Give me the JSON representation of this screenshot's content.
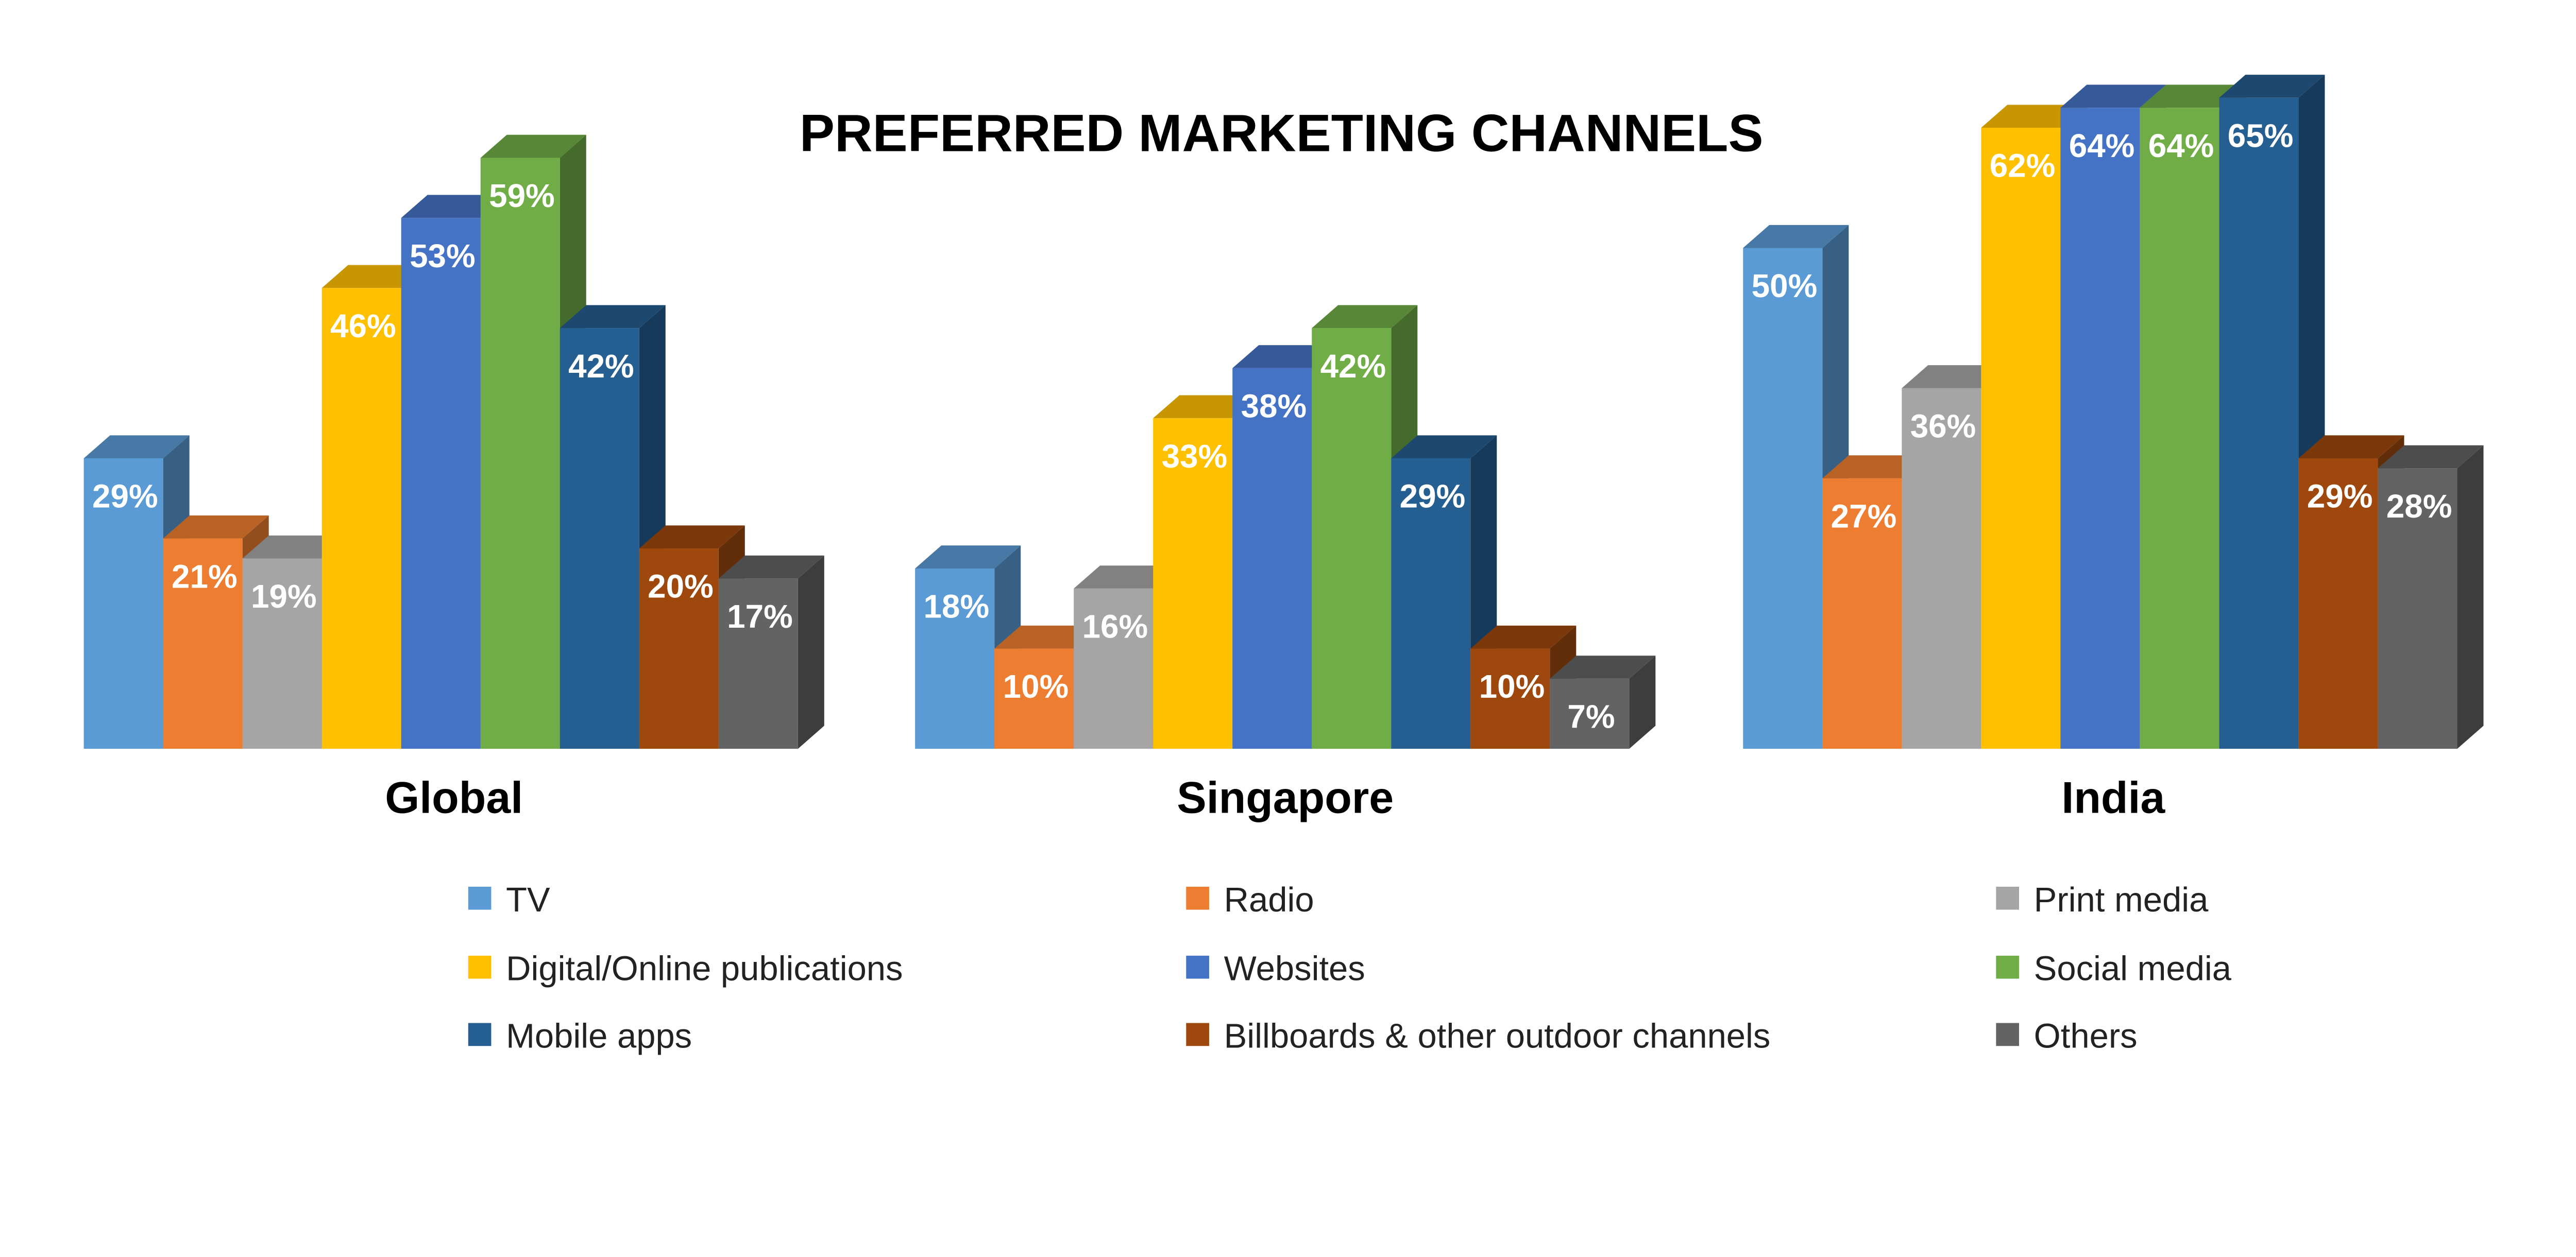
{
  "chart_data": {
    "type": "bar",
    "title": "PREFERRED MARKETING CHANNELS",
    "categories": [
      "Global",
      "Singapore",
      "India"
    ],
    "value_format": "percent",
    "ylim": [
      0,
      70
    ],
    "grid": false,
    "legend_position": "bottom",
    "series": [
      {
        "name": "TV",
        "color": "#5B9BD5",
        "values": [
          29,
          18,
          50
        ]
      },
      {
        "name": "Radio",
        "color": "#ED7D31",
        "values": [
          21,
          10,
          27
        ]
      },
      {
        "name": "Print media",
        "color": "#A5A5A5",
        "values": [
          19,
          16,
          36
        ]
      },
      {
        "name": "Digital/Online publications",
        "color": "#FFC000",
        "values": [
          46,
          33,
          62
        ]
      },
      {
        "name": "Websites",
        "color": "#4472C4",
        "values": [
          53,
          38,
          64
        ]
      },
      {
        "name": "Social media",
        "color": "#70AD47",
        "values": [
          59,
          42,
          64
        ]
      },
      {
        "name": "Mobile apps",
        "color": "#255E91",
        "values": [
          42,
          29,
          65
        ]
      },
      {
        "name": "Billboards & other outdoor channels",
        "color": "#9E480E",
        "values": [
          20,
          10,
          29
        ]
      },
      {
        "name": "Others",
        "color": "#636363",
        "values": [
          17,
          7,
          28
        ]
      }
    ]
  }
}
